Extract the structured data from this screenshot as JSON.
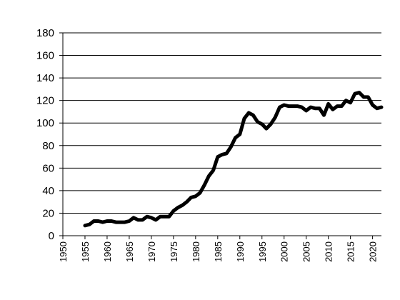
{
  "chart_data": {
    "type": "line",
    "title": "",
    "xlabel": "",
    "ylabel": "",
    "xlim": [
      1950,
      2022
    ],
    "ylim": [
      0,
      180
    ],
    "yticks": [
      0,
      20,
      40,
      60,
      80,
      100,
      120,
      140,
      160,
      180
    ],
    "xticks": [
      1950,
      1955,
      1960,
      1965,
      1970,
      1975,
      1980,
      1985,
      1990,
      1995,
      2000,
      2005,
      2010,
      2015,
      2020
    ],
    "grid": "horizontal",
    "legend": "none",
    "line_color": "#000000",
    "series": [
      {
        "x": [
          1955,
          1956,
          1957,
          1958,
          1959,
          1960,
          1961,
          1962,
          1963,
          1964,
          1965,
          1966,
          1967,
          1968,
          1969,
          1970,
          1971,
          1972,
          1973,
          1974,
          1975,
          1976,
          1977,
          1978,
          1979,
          1980,
          1981,
          1982,
          1983,
          1984,
          1985,
          1986,
          1987,
          1988,
          1989,
          1990,
          1991,
          1992,
          1993,
          1994,
          1995,
          1996,
          1997,
          1998,
          1999,
          2000,
          2001,
          2002,
          2003,
          2004,
          2005,
          2006,
          2007,
          2008,
          2009,
          2010,
          2011,
          2012,
          2013,
          2014,
          2015,
          2016,
          2017,
          2018,
          2019,
          2020,
          2021,
          2022
        ],
        "values": [
          9,
          10,
          13,
          13,
          12,
          13,
          13,
          12,
          12,
          12,
          13,
          16,
          14,
          14,
          17,
          16,
          14,
          17,
          17,
          17,
          22,
          25,
          27,
          30,
          34,
          35,
          38,
          45,
          53,
          58,
          70,
          72,
          73,
          79,
          87,
          90,
          104,
          109,
          107,
          101,
          99,
          95,
          99,
          105,
          114,
          116,
          115,
          115,
          115,
          114,
          111,
          114,
          113,
          113,
          107,
          117,
          112,
          115,
          115,
          120,
          118,
          126,
          127,
          123,
          123,
          116,
          113,
          114
        ]
      }
    ]
  }
}
